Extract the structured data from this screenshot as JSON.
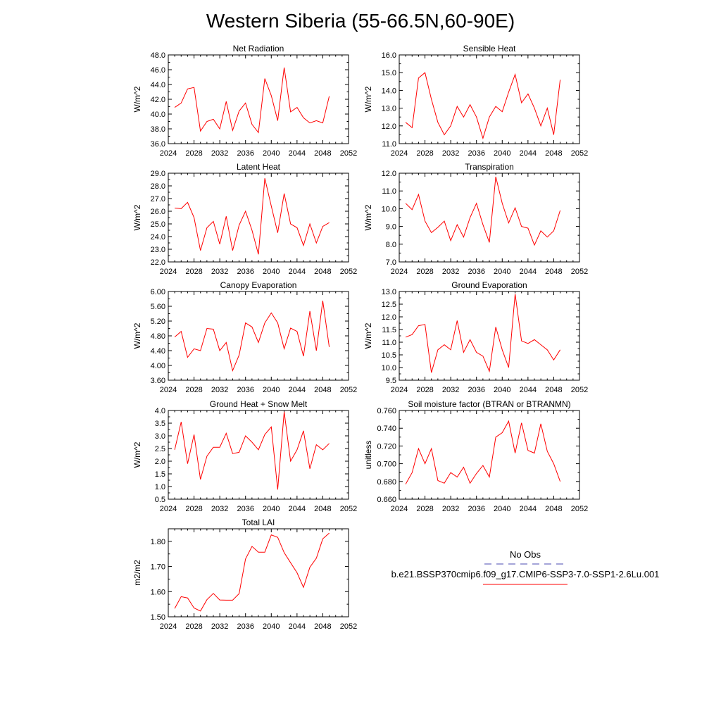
{
  "title": "Western Siberia (55-66.5N,60-90E)",
  "line_color": "#ff0000",
  "legend": {
    "obs_label": "No Obs",
    "obs_color": "#4a4ab0",
    "model_label": "b.e21.BSSP370cmip6.f09_g17.CMIP6-SSP3-7.0-SSP1-2.6Lu.001",
    "model_color": "#ff0000"
  },
  "chart_data": [
    {
      "type": "line",
      "title": "Net Radiation",
      "ylabel": "W/m^2",
      "xlim": [
        2024,
        2052
      ],
      "ylim": [
        36.0,
        48.0
      ],
      "xticks": [
        2024,
        2028,
        2032,
        2036,
        2040,
        2044,
        2048,
        2052
      ],
      "yticks": [
        "36.0",
        "38.0",
        "40.0",
        "42.0",
        "44.0",
        "46.0",
        "48.0"
      ],
      "x": [
        2025,
        2026,
        2027,
        2028,
        2029,
        2030,
        2031,
        2032,
        2033,
        2034,
        2035,
        2036,
        2037,
        2038,
        2039,
        2040,
        2041,
        2042,
        2043,
        2044,
        2045,
        2046,
        2047,
        2048,
        2049
      ],
      "values": [
        40.9,
        41.5,
        43.4,
        43.6,
        37.7,
        39.0,
        39.3,
        38.0,
        41.7,
        37.8,
        40.4,
        41.5,
        38.6,
        37.5,
        44.8,
        42.5,
        39.1,
        46.3,
        40.3,
        40.9,
        39.5,
        38.8,
        39.1,
        38.8,
        42.4
      ]
    },
    {
      "type": "line",
      "title": "Sensible Heat",
      "ylabel": "W/m^2",
      "xlim": [
        2024,
        2052
      ],
      "ylim": [
        11.0,
        16.0
      ],
      "xticks": [
        2024,
        2028,
        2032,
        2036,
        2040,
        2044,
        2048,
        2052
      ],
      "yticks": [
        "11.0",
        "12.0",
        "13.0",
        "14.0",
        "15.0",
        "16.0"
      ],
      "x": [
        2025,
        2026,
        2027,
        2028,
        2029,
        2030,
        2031,
        2032,
        2033,
        2034,
        2035,
        2036,
        2037,
        2038,
        2039,
        2040,
        2041,
        2042,
        2043,
        2044,
        2045,
        2046,
        2047,
        2048,
        2049
      ],
      "values": [
        12.2,
        11.9,
        14.7,
        15.0,
        13.5,
        12.2,
        11.5,
        12.0,
        13.1,
        12.5,
        13.2,
        12.5,
        11.3,
        12.5,
        13.1,
        12.8,
        13.9,
        14.9,
        13.3,
        13.8,
        13.0,
        12.0,
        13.0,
        11.5,
        14.6
      ]
    },
    {
      "type": "line",
      "title": "Latent Heat",
      "ylabel": "W/m^2",
      "xlim": [
        2024,
        2052
      ],
      "ylim": [
        22.0,
        29.0
      ],
      "xticks": [
        2024,
        2028,
        2032,
        2036,
        2040,
        2044,
        2048,
        2052
      ],
      "yticks": [
        "22.0",
        "23.0",
        "24.0",
        "25.0",
        "26.0",
        "27.0",
        "28.0",
        "29.0"
      ],
      "x": [
        2025,
        2026,
        2027,
        2028,
        2029,
        2030,
        2031,
        2032,
        2033,
        2034,
        2035,
        2036,
        2037,
        2038,
        2039,
        2040,
        2041,
        2042,
        2043,
        2044,
        2045,
        2046,
        2047,
        2048,
        2049
      ],
      "values": [
        26.25,
        26.2,
        26.7,
        25.5,
        22.9,
        24.7,
        25.2,
        23.4,
        25.6,
        22.9,
        24.9,
        26.0,
        24.5,
        22.6,
        28.6,
        26.4,
        24.3,
        27.4,
        25.0,
        24.7,
        23.3,
        25.0,
        23.5,
        24.8,
        25.1
      ]
    },
    {
      "type": "line",
      "title": "Transpiration",
      "ylabel": "W/m^2",
      "xlim": [
        2024,
        2052
      ],
      "ylim": [
        7.0,
        12.0
      ],
      "xticks": [
        2024,
        2028,
        2032,
        2036,
        2040,
        2044,
        2048,
        2052
      ],
      "yticks": [
        "7.0",
        "8.0",
        "9.0",
        "10.0",
        "11.0",
        "12.0"
      ],
      "x": [
        2025,
        2026,
        2027,
        2028,
        2029,
        2030,
        2031,
        2032,
        2033,
        2034,
        2035,
        2036,
        2037,
        2038,
        2039,
        2040,
        2041,
        2042,
        2043,
        2044,
        2045,
        2046,
        2047,
        2048,
        2049
      ],
      "values": [
        10.3,
        9.95,
        10.8,
        9.3,
        8.65,
        8.95,
        9.3,
        8.2,
        9.1,
        8.4,
        9.5,
        10.3,
        9.1,
        8.1,
        11.8,
        10.3,
        9.2,
        10.05,
        9.0,
        8.9,
        7.95,
        8.75,
        8.4,
        8.75,
        9.9
      ]
    },
    {
      "type": "line",
      "title": "Canopy Evaporation",
      "ylabel": "W/m^2",
      "xlim": [
        2024,
        2052
      ],
      "ylim": [
        3.6,
        6.0
      ],
      "xticks": [
        2024,
        2028,
        2032,
        2036,
        2040,
        2044,
        2048,
        2052
      ],
      "yticks": [
        "3.60",
        "4.00",
        "4.40",
        "4.80",
        "5.20",
        "5.60",
        "6.00"
      ],
      "x": [
        2025,
        2026,
        2027,
        2028,
        2029,
        2030,
        2031,
        2032,
        2033,
        2034,
        2035,
        2036,
        2037,
        2038,
        2039,
        2040,
        2041,
        2042,
        2043,
        2044,
        2045,
        2046,
        2047,
        2048,
        2049
      ],
      "values": [
        4.77,
        4.92,
        4.22,
        4.45,
        4.4,
        5.0,
        4.98,
        4.4,
        4.62,
        3.86,
        4.28,
        5.15,
        5.04,
        4.62,
        5.15,
        5.42,
        5.15,
        4.45,
        5.01,
        4.92,
        4.25,
        5.47,
        4.4,
        5.75,
        4.5
      ]
    },
    {
      "type": "line",
      "title": "Ground Evaporation",
      "ylabel": "W/m^2",
      "xlim": [
        2024,
        2052
      ],
      "ylim": [
        9.5,
        13.0
      ],
      "xticks": [
        2024,
        2028,
        2032,
        2036,
        2040,
        2044,
        2048,
        2052
      ],
      "yticks": [
        "9.5",
        "10.0",
        "10.5",
        "11.0",
        "11.5",
        "12.0",
        "12.5",
        "13.0"
      ],
      "x": [
        2025,
        2026,
        2027,
        2028,
        2029,
        2030,
        2031,
        2032,
        2033,
        2034,
        2035,
        2036,
        2037,
        2038,
        2039,
        2040,
        2041,
        2042,
        2043,
        2044,
        2045,
        2046,
        2047,
        2048,
        2049
      ],
      "values": [
        11.2,
        11.3,
        11.65,
        11.7,
        9.8,
        10.7,
        10.9,
        10.7,
        11.85,
        10.6,
        11.1,
        10.6,
        10.45,
        9.85,
        11.6,
        10.7,
        10.0,
        12.9,
        11.05,
        10.95,
        11.1,
        10.9,
        10.7,
        10.3,
        10.7
      ]
    },
    {
      "type": "line",
      "title": "Ground Heat + Snow Melt",
      "ylabel": "W/m^2",
      "xlim": [
        2024,
        2052
      ],
      "ylim": [
        0.5,
        4.0
      ],
      "xticks": [
        2024,
        2028,
        2032,
        2036,
        2040,
        2044,
        2048,
        2052
      ],
      "yticks": [
        "0.5",
        "1.0",
        "1.5",
        "2.0",
        "2.5",
        "3.0",
        "3.5",
        "4.0"
      ],
      "x": [
        2025,
        2026,
        2027,
        2028,
        2029,
        2030,
        2031,
        2032,
        2033,
        2034,
        2035,
        2036,
        2037,
        2038,
        2039,
        2040,
        2041,
        2042,
        2043,
        2044,
        2045,
        2046,
        2047,
        2048,
        2049
      ],
      "values": [
        2.45,
        3.55,
        1.9,
        3.05,
        1.28,
        2.2,
        2.55,
        2.55,
        3.1,
        2.3,
        2.35,
        3.0,
        2.75,
        2.45,
        3.05,
        3.35,
        0.88,
        3.95,
        2.0,
        2.45,
        3.2,
        1.7,
        2.65,
        2.45,
        2.7
      ]
    },
    {
      "type": "line",
      "title": "Soil moisture factor (BTRAN or BTRANMN)",
      "ylabel": "unitless",
      "xlim": [
        2024,
        2052
      ],
      "ylim": [
        0.66,
        0.76
      ],
      "xticks": [
        2024,
        2028,
        2032,
        2036,
        2040,
        2044,
        2048,
        2052
      ],
      "yticks": [
        "0.660",
        "0.680",
        "0.700",
        "0.720",
        "0.740",
        "0.760"
      ],
      "x": [
        2025,
        2026,
        2027,
        2028,
        2029,
        2030,
        2031,
        2032,
        2033,
        2034,
        2035,
        2036,
        2037,
        2038,
        2039,
        2040,
        2041,
        2042,
        2043,
        2044,
        2045,
        2046,
        2047,
        2048,
        2049
      ],
      "values": [
        0.677,
        0.69,
        0.717,
        0.7,
        0.717,
        0.681,
        0.678,
        0.69,
        0.685,
        0.696,
        0.678,
        0.689,
        0.698,
        0.685,
        0.73,
        0.735,
        0.748,
        0.712,
        0.746,
        0.715,
        0.712,
        0.745,
        0.714,
        0.7,
        0.68
      ]
    },
    {
      "type": "line",
      "title": "Total LAI",
      "ylabel": "m2/m2",
      "xlim": [
        2024,
        2052
      ],
      "ylim": [
        1.5,
        1.85
      ],
      "xticks": [
        2024,
        2028,
        2032,
        2036,
        2040,
        2044,
        2048,
        2052
      ],
      "yticks": [
        "1.50",
        "1.60",
        "1.70",
        "1.80"
      ],
      "x": [
        2025,
        2026,
        2027,
        2028,
        2029,
        2030,
        2031,
        2032,
        2033,
        2034,
        2035,
        2036,
        2037,
        2038,
        2039,
        2040,
        2041,
        2042,
        2043,
        2044,
        2045,
        2046,
        2047,
        2048,
        2049
      ],
      "values": [
        1.533,
        1.58,
        1.575,
        1.535,
        1.523,
        1.568,
        1.593,
        1.567,
        1.566,
        1.566,
        1.592,
        1.73,
        1.78,
        1.757,
        1.757,
        1.826,
        1.816,
        1.755,
        1.715,
        1.675,
        1.617,
        1.697,
        1.733,
        1.81,
        1.833
      ]
    }
  ]
}
